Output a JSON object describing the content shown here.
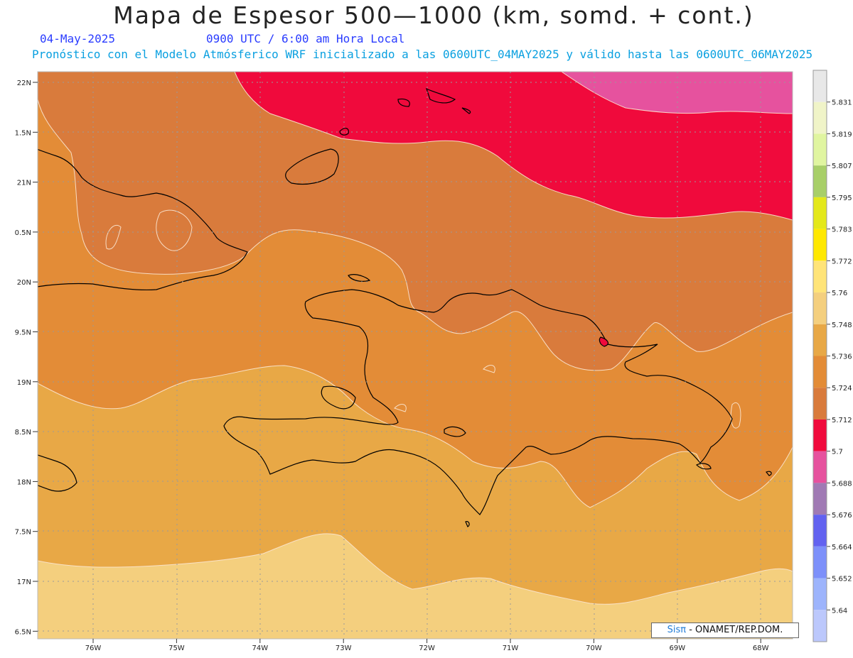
{
  "title": "Mapa de Espesor 500—1000 (km, somd. + cont.)",
  "date": "04-May-2025",
  "valid_time": "0900 UTC / 6:00 am Hora Local",
  "forecast_info": "Pronóstico con el Modelo Atmósferico WRF inicializado a las 0600UTC_04MAY2025 y válido hasta las  0600UTC_06MAY2025",
  "credit": {
    "sis": "Sisπ",
    "rest": "- ONAMET/REP.DOM."
  },
  "lat_labels": [
    "22N",
    "1.5N",
    "21N",
    "0.5N",
    "20N",
    "9.5N",
    "19N",
    "8.5N",
    "18N",
    "7.5N",
    "17N",
    "6.5N"
  ],
  "lon_labels": [
    "76W",
    "75W",
    "74W",
    "73W",
    "72W",
    "71W",
    "70W",
    "69W",
    "68W"
  ],
  "colorbar": {
    "labels": [
      "5.831",
      "5.819",
      "5.807",
      "5.795",
      "5.783",
      "5.772",
      "5.76",
      "5.748",
      "5.736",
      "5.724",
      "5.712",
      "5.7",
      "5.688",
      "5.676",
      "5.664",
      "5.652",
      "5.64"
    ],
    "colors": [
      "#e8e8e8",
      "#f0f4c8",
      "#e0f5a0",
      "#a8cf68",
      "#e4e81a",
      "#ffe800",
      "#ffe478",
      "#f4cf7e",
      "#e8a846",
      "#e38c37",
      "#d97b3c",
      "#f00a3c",
      "#e6529e",
      "#a07ab4",
      "#6262f0",
      "#7d90fa",
      "#9db4fc",
      "#bcc8fc"
    ]
  }
}
